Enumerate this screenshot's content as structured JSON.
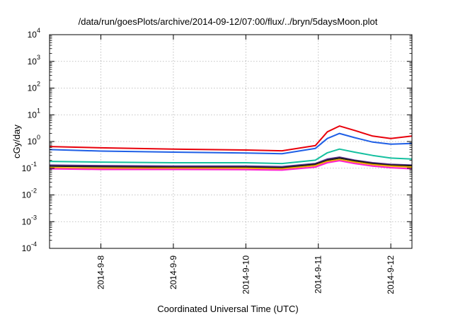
{
  "chart_data": {
    "type": "line",
    "title": "/data/run/goesPlots/archive/2014-09-12/07:00/flux/../bryn/5daysMoon.plot",
    "xlabel": "Coordinated Universal Time (UTC)",
    "ylabel": "cGy/day",
    "yscale": "log",
    "ylim": [
      0.0001,
      10000
    ],
    "xlim": [
      "2014-09-07T07:00",
      "2014-09-12T07:00"
    ],
    "grid": true,
    "x_ticks": [
      "2014-9-8",
      "2014-9-9",
      "2014-9-10",
      "2014-9-11",
      "2014-9-12"
    ],
    "y_ticks": [
      {
        "base": "10",
        "exp": "-4"
      },
      {
        "base": "10",
        "exp": "-3"
      },
      {
        "base": "10",
        "exp": "-2"
      },
      {
        "base": "10",
        "exp": "-1"
      },
      {
        "base": "10",
        "exp": "0"
      },
      {
        "base": "10",
        "exp": "1"
      },
      {
        "base": "10",
        "exp": "2"
      },
      {
        "base": "10",
        "exp": "3"
      },
      {
        "base": "10",
        "exp": "4"
      }
    ],
    "x": [
      "2014-09-07T07:00",
      "2014-09-08T00:00",
      "2014-09-09T00:00",
      "2014-09-10T00:00",
      "2014-09-10T12:00",
      "2014-09-10T23:00",
      "2014-09-11T03:00",
      "2014-09-11T07:00",
      "2014-09-11T12:00",
      "2014-09-11T18:00",
      "2014-09-12T00:00",
      "2014-09-12T07:00"
    ],
    "series": [
      {
        "color": "#e8000b",
        "values": [
          0.65,
          0.58,
          0.52,
          0.48,
          0.45,
          0.7,
          2.3,
          3.8,
          2.6,
          1.6,
          1.3,
          1.6
        ]
      },
      {
        "color": "#1f5fe6",
        "values": [
          0.5,
          0.44,
          0.4,
          0.37,
          0.35,
          0.55,
          1.3,
          2.0,
          1.4,
          0.95,
          0.8,
          0.85
        ]
      },
      {
        "color": "#16c0a0",
        "values": [
          0.18,
          0.17,
          0.16,
          0.16,
          0.15,
          0.2,
          0.38,
          0.52,
          0.4,
          0.3,
          0.24,
          0.22
        ]
      },
      {
        "color": "#5a2d91",
        "values": [
          0.13,
          0.125,
          0.12,
          0.12,
          0.115,
          0.15,
          0.22,
          0.26,
          0.2,
          0.16,
          0.14,
          0.13
        ]
      },
      {
        "color": "#1a1a1a",
        "values": [
          0.12,
          0.115,
          0.11,
          0.11,
          0.105,
          0.14,
          0.2,
          0.24,
          0.19,
          0.15,
          0.13,
          0.125
        ]
      },
      {
        "color": "#f0a800",
        "values": [
          0.105,
          0.1,
          0.1,
          0.1,
          0.095,
          0.125,
          0.18,
          0.21,
          0.17,
          0.135,
          0.12,
          0.11
        ]
      },
      {
        "color": "#ff1fd2",
        "values": [
          0.095,
          0.09,
          0.09,
          0.088,
          0.085,
          0.11,
          0.16,
          0.19,
          0.15,
          0.12,
          0.105,
          0.095
        ]
      }
    ]
  }
}
